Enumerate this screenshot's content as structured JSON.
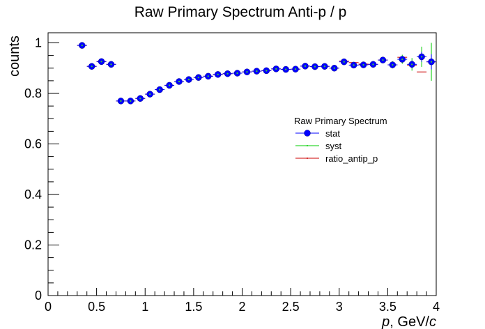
{
  "chart_data": {
    "type": "scatter",
    "title": "Raw Primary Spectrum Anti-p / p",
    "ylabel": "counts",
    "xlabel_parts": [
      "p",
      ", GeV/",
      "c"
    ],
    "xlim": [
      0,
      4
    ],
    "ylim": [
      0,
      1.04
    ],
    "x_ticks": [
      "0",
      "0.5",
      "1",
      "1.5",
      "2",
      "2.5",
      "3",
      "3.5",
      "4"
    ],
    "y_ticks": [
      "0",
      "0.2",
      "0.4",
      "0.6",
      "0.8",
      "1"
    ],
    "legend": {
      "title": "Raw Primary Spectrum",
      "entries": [
        "stat",
        "syst",
        "ratio_antip_p"
      ]
    },
    "x": [
      0.35,
      0.45,
      0.55,
      0.65,
      0.75,
      0.85,
      0.95,
      1.05,
      1.15,
      1.25,
      1.35,
      1.45,
      1.55,
      1.65,
      1.75,
      1.85,
      1.95,
      2.05,
      2.15,
      2.25,
      2.35,
      2.45,
      2.55,
      2.65,
      2.75,
      2.85,
      2.95,
      3.05,
      3.15,
      3.25,
      3.35,
      3.45,
      3.55,
      3.65,
      3.75,
      3.85,
      3.95
    ],
    "x_bin_half_width": 0.05,
    "series": [
      {
        "name": "stat",
        "color": "#0000ff",
        "fill": "#0000ff",
        "values": [
          0.99,
          0.907,
          0.926,
          0.915,
          0.77,
          0.77,
          0.78,
          0.797,
          0.815,
          0.832,
          0.847,
          0.855,
          0.863,
          0.868,
          0.875,
          0.878,
          0.88,
          0.885,
          0.888,
          0.89,
          0.897,
          0.895,
          0.896,
          0.908,
          0.906,
          0.907,
          0.9,
          0.925,
          0.912,
          0.913,
          0.915,
          0.932,
          0.913,
          0.935,
          0.915,
          0.945,
          0.925
        ],
        "errors": [
          0.006,
          0.005,
          0.005,
          0.005,
          0.004,
          0.004,
          0.004,
          0.004,
          0.004,
          0.004,
          0.004,
          0.004,
          0.004,
          0.004,
          0.004,
          0.004,
          0.004,
          0.004,
          0.004,
          0.004,
          0.004,
          0.004,
          0.005,
          0.005,
          0.005,
          0.006,
          0.006,
          0.006,
          0.007,
          0.007,
          0.008,
          0.009,
          0.01,
          0.012,
          0.015,
          0.02,
          0.03
        ]
      },
      {
        "name": "syst",
        "color": "#00cc00",
        "values": [
          0.99,
          0.907,
          0.926,
          0.915,
          0.77,
          0.77,
          0.78,
          0.797,
          0.815,
          0.832,
          0.847,
          0.855,
          0.863,
          0.868,
          0.875,
          0.878,
          0.88,
          0.885,
          0.888,
          0.89,
          0.897,
          0.895,
          0.896,
          0.908,
          0.906,
          0.907,
          0.9,
          0.925,
          0.912,
          0.913,
          0.915,
          0.932,
          0.913,
          0.935,
          0.915,
          0.945,
          0.925
        ],
        "errors": [
          0.012,
          0.008,
          0.008,
          0.008,
          0.006,
          0.006,
          0.006,
          0.006,
          0.006,
          0.006,
          0.006,
          0.006,
          0.006,
          0.006,
          0.006,
          0.006,
          0.006,
          0.006,
          0.006,
          0.006,
          0.006,
          0.006,
          0.006,
          0.006,
          0.007,
          0.007,
          0.007,
          0.008,
          0.008,
          0.009,
          0.01,
          0.012,
          0.014,
          0.018,
          0.025,
          0.04,
          0.075
        ]
      },
      {
        "name": "ratio_antip_p",
        "color": "#cc0000",
        "values": [
          0.99,
          0.907,
          0.926,
          0.915,
          0.77,
          0.77,
          0.78,
          0.797,
          0.815,
          0.832,
          0.847,
          0.855,
          0.863,
          0.868,
          0.875,
          0.878,
          0.88,
          0.885,
          0.888,
          0.89,
          0.897,
          0.895,
          0.896,
          0.908,
          0.906,
          0.907,
          0.9,
          0.928,
          0.922,
          0.916,
          0.915,
          0.932,
          0.913,
          0.943,
          0.912,
          0.885,
          0.925
        ]
      }
    ]
  }
}
